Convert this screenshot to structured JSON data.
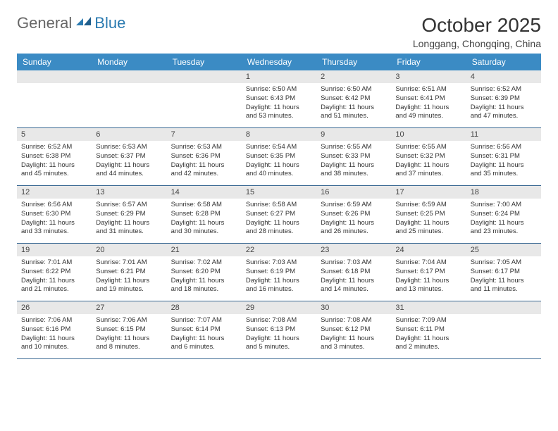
{
  "logo": {
    "text1": "General",
    "text2": "Blue"
  },
  "title": "October 2025",
  "location": "Longgang, Chongqing, China",
  "colors": {
    "header_bg": "#3b8bc4",
    "header_text": "#ffffff",
    "daynum_bg": "#e8e8e8",
    "cell_border": "#3b6a94",
    "logo_accent": "#2a7ab0"
  },
  "day_labels": [
    "Sunday",
    "Monday",
    "Tuesday",
    "Wednesday",
    "Thursday",
    "Friday",
    "Saturday"
  ],
  "weeks": [
    {
      "cells": [
        {
          "day": "",
          "sunrise": "",
          "sunset": "",
          "daylight": ""
        },
        {
          "day": "",
          "sunrise": "",
          "sunset": "",
          "daylight": ""
        },
        {
          "day": "",
          "sunrise": "",
          "sunset": "",
          "daylight": ""
        },
        {
          "day": "1",
          "sunrise": "Sunrise: 6:50 AM",
          "sunset": "Sunset: 6:43 PM",
          "daylight": "Daylight: 11 hours and 53 minutes."
        },
        {
          "day": "2",
          "sunrise": "Sunrise: 6:50 AM",
          "sunset": "Sunset: 6:42 PM",
          "daylight": "Daylight: 11 hours and 51 minutes."
        },
        {
          "day": "3",
          "sunrise": "Sunrise: 6:51 AM",
          "sunset": "Sunset: 6:41 PM",
          "daylight": "Daylight: 11 hours and 49 minutes."
        },
        {
          "day": "4",
          "sunrise": "Sunrise: 6:52 AM",
          "sunset": "Sunset: 6:39 PM",
          "daylight": "Daylight: 11 hours and 47 minutes."
        }
      ]
    },
    {
      "cells": [
        {
          "day": "5",
          "sunrise": "Sunrise: 6:52 AM",
          "sunset": "Sunset: 6:38 PM",
          "daylight": "Daylight: 11 hours and 45 minutes."
        },
        {
          "day": "6",
          "sunrise": "Sunrise: 6:53 AM",
          "sunset": "Sunset: 6:37 PM",
          "daylight": "Daylight: 11 hours and 44 minutes."
        },
        {
          "day": "7",
          "sunrise": "Sunrise: 6:53 AM",
          "sunset": "Sunset: 6:36 PM",
          "daylight": "Daylight: 11 hours and 42 minutes."
        },
        {
          "day": "8",
          "sunrise": "Sunrise: 6:54 AM",
          "sunset": "Sunset: 6:35 PM",
          "daylight": "Daylight: 11 hours and 40 minutes."
        },
        {
          "day": "9",
          "sunrise": "Sunrise: 6:55 AM",
          "sunset": "Sunset: 6:33 PM",
          "daylight": "Daylight: 11 hours and 38 minutes."
        },
        {
          "day": "10",
          "sunrise": "Sunrise: 6:55 AM",
          "sunset": "Sunset: 6:32 PM",
          "daylight": "Daylight: 11 hours and 37 minutes."
        },
        {
          "day": "11",
          "sunrise": "Sunrise: 6:56 AM",
          "sunset": "Sunset: 6:31 PM",
          "daylight": "Daylight: 11 hours and 35 minutes."
        }
      ]
    },
    {
      "cells": [
        {
          "day": "12",
          "sunrise": "Sunrise: 6:56 AM",
          "sunset": "Sunset: 6:30 PM",
          "daylight": "Daylight: 11 hours and 33 minutes."
        },
        {
          "day": "13",
          "sunrise": "Sunrise: 6:57 AM",
          "sunset": "Sunset: 6:29 PM",
          "daylight": "Daylight: 11 hours and 31 minutes."
        },
        {
          "day": "14",
          "sunrise": "Sunrise: 6:58 AM",
          "sunset": "Sunset: 6:28 PM",
          "daylight": "Daylight: 11 hours and 30 minutes."
        },
        {
          "day": "15",
          "sunrise": "Sunrise: 6:58 AM",
          "sunset": "Sunset: 6:27 PM",
          "daylight": "Daylight: 11 hours and 28 minutes."
        },
        {
          "day": "16",
          "sunrise": "Sunrise: 6:59 AM",
          "sunset": "Sunset: 6:26 PM",
          "daylight": "Daylight: 11 hours and 26 minutes."
        },
        {
          "day": "17",
          "sunrise": "Sunrise: 6:59 AM",
          "sunset": "Sunset: 6:25 PM",
          "daylight": "Daylight: 11 hours and 25 minutes."
        },
        {
          "day": "18",
          "sunrise": "Sunrise: 7:00 AM",
          "sunset": "Sunset: 6:24 PM",
          "daylight": "Daylight: 11 hours and 23 minutes."
        }
      ]
    },
    {
      "cells": [
        {
          "day": "19",
          "sunrise": "Sunrise: 7:01 AM",
          "sunset": "Sunset: 6:22 PM",
          "daylight": "Daylight: 11 hours and 21 minutes."
        },
        {
          "day": "20",
          "sunrise": "Sunrise: 7:01 AM",
          "sunset": "Sunset: 6:21 PM",
          "daylight": "Daylight: 11 hours and 19 minutes."
        },
        {
          "day": "21",
          "sunrise": "Sunrise: 7:02 AM",
          "sunset": "Sunset: 6:20 PM",
          "daylight": "Daylight: 11 hours and 18 minutes."
        },
        {
          "day": "22",
          "sunrise": "Sunrise: 7:03 AM",
          "sunset": "Sunset: 6:19 PM",
          "daylight": "Daylight: 11 hours and 16 minutes."
        },
        {
          "day": "23",
          "sunrise": "Sunrise: 7:03 AM",
          "sunset": "Sunset: 6:18 PM",
          "daylight": "Daylight: 11 hours and 14 minutes."
        },
        {
          "day": "24",
          "sunrise": "Sunrise: 7:04 AM",
          "sunset": "Sunset: 6:17 PM",
          "daylight": "Daylight: 11 hours and 13 minutes."
        },
        {
          "day": "25",
          "sunrise": "Sunrise: 7:05 AM",
          "sunset": "Sunset: 6:17 PM",
          "daylight": "Daylight: 11 hours and 11 minutes."
        }
      ]
    },
    {
      "cells": [
        {
          "day": "26",
          "sunrise": "Sunrise: 7:06 AM",
          "sunset": "Sunset: 6:16 PM",
          "daylight": "Daylight: 11 hours and 10 minutes."
        },
        {
          "day": "27",
          "sunrise": "Sunrise: 7:06 AM",
          "sunset": "Sunset: 6:15 PM",
          "daylight": "Daylight: 11 hours and 8 minutes."
        },
        {
          "day": "28",
          "sunrise": "Sunrise: 7:07 AM",
          "sunset": "Sunset: 6:14 PM",
          "daylight": "Daylight: 11 hours and 6 minutes."
        },
        {
          "day": "29",
          "sunrise": "Sunrise: 7:08 AM",
          "sunset": "Sunset: 6:13 PM",
          "daylight": "Daylight: 11 hours and 5 minutes."
        },
        {
          "day": "30",
          "sunrise": "Sunrise: 7:08 AM",
          "sunset": "Sunset: 6:12 PM",
          "daylight": "Daylight: 11 hours and 3 minutes."
        },
        {
          "day": "31",
          "sunrise": "Sunrise: 7:09 AM",
          "sunset": "Sunset: 6:11 PM",
          "daylight": "Daylight: 11 hours and 2 minutes."
        },
        {
          "day": "",
          "sunrise": "",
          "sunset": "",
          "daylight": ""
        }
      ]
    }
  ]
}
